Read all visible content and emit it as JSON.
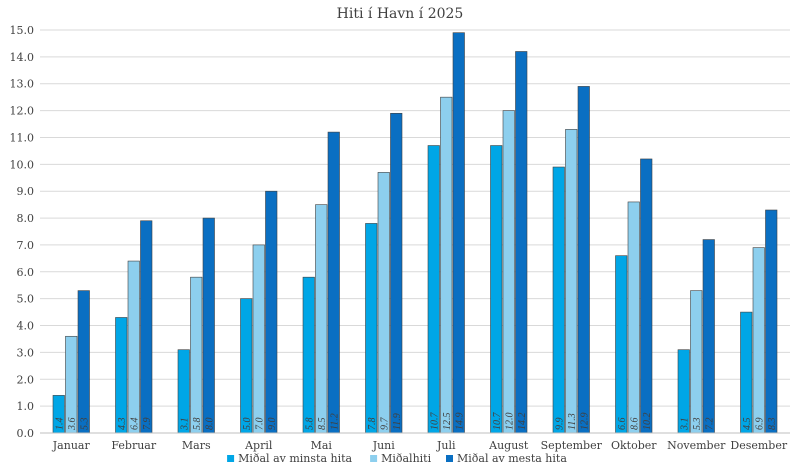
{
  "chart_data": {
    "type": "bar",
    "title": "Hiti í Havn í 2025",
    "xlabel": "",
    "ylabel": "",
    "ylim": [
      0,
      15
    ],
    "ytick_step": 1,
    "ytick_decimals": 1,
    "grid": true,
    "legend_position": "bottom",
    "categories": [
      "Januar",
      "Februar",
      "Mars",
      "April",
      "Mai",
      "Juni",
      "Juli",
      "August",
      "September",
      "Oktober",
      "November",
      "Desember"
    ],
    "series": [
      {
        "name": "Miðal av minsta hita",
        "color": "#00a6e6",
        "values": [
          1.4,
          4.3,
          3.1,
          5.0,
          5.8,
          7.8,
          10.7,
          10.7,
          9.9,
          6.6,
          3.1,
          4.5
        ]
      },
      {
        "name": "Miðalhiti",
        "color": "#8dcfee",
        "values": [
          3.6,
          6.4,
          5.8,
          7.0,
          8.5,
          9.7,
          12.5,
          12.0,
          11.3,
          8.6,
          5.3,
          6.9
        ]
      },
      {
        "name": "Miðal av mesta hita",
        "color": "#0a6fc2",
        "values": [
          5.3,
          7.9,
          8.0,
          9.0,
          11.2,
          11.9,
          14.9,
          14.2,
          12.9,
          10.2,
          7.2,
          8.3
        ]
      }
    ],
    "data_labels": true,
    "data_label_decimals": 1
  }
}
